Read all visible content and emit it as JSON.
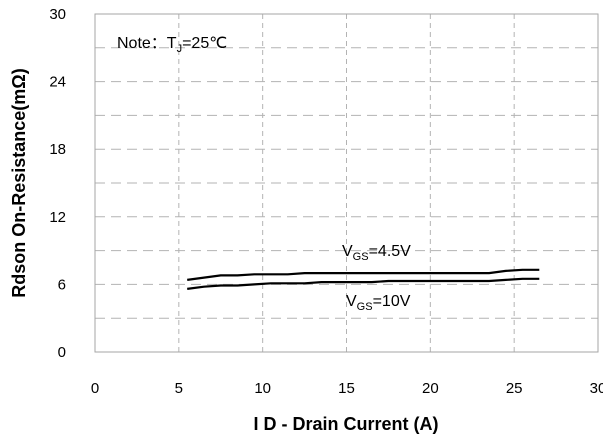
{
  "chart_data": {
    "type": "line",
    "title": "",
    "xlabel": "I D - Drain Current (A)",
    "ylabel": "Rdson On-Resistance(mΩ)",
    "xlim": [
      0,
      30
    ],
    "ylim": [
      0,
      30
    ],
    "x_ticks": [
      "0",
      "5",
      "10",
      "15",
      "20",
      "25",
      "30"
    ],
    "y_ticks": [
      "0",
      "6",
      "12",
      "18",
      "24",
      "30"
    ],
    "grid": true,
    "legend": "none",
    "series": [
      {
        "name": "VGS=4.5V",
        "color": "#000000",
        "x": [
          5.5,
          6.5,
          7.5,
          8.5,
          9.5,
          10.5,
          11.5,
          12.5,
          13.5,
          14.5,
          15.5,
          16.5,
          17.5,
          18.5,
          19.5,
          20.5,
          21.5,
          22.5,
          23.5,
          24.5,
          25.5,
          26.5
        ],
        "values": [
          6.4,
          6.6,
          6.8,
          6.8,
          6.9,
          6.9,
          6.9,
          7.0,
          7.0,
          7.0,
          7.0,
          7.0,
          7.0,
          7.0,
          7.0,
          7.0,
          7.0,
          7.0,
          7.0,
          7.2,
          7.3,
          7.3
        ]
      },
      {
        "name": "VGS=10V",
        "color": "#000000",
        "x": [
          5.5,
          6.5,
          7.5,
          8.5,
          9.5,
          10.5,
          11.5,
          12.5,
          13.5,
          14.5,
          15.5,
          16.5,
          17.5,
          18.5,
          19.5,
          20.5,
          21.5,
          22.5,
          23.5,
          24.5,
          25.5,
          26.5
        ],
        "values": [
          5.6,
          5.8,
          5.9,
          5.9,
          6.0,
          6.1,
          6.1,
          6.1,
          6.2,
          6.2,
          6.2,
          6.2,
          6.3,
          6.3,
          6.3,
          6.3,
          6.3,
          6.3,
          6.3,
          6.4,
          6.5,
          6.5
        ]
      }
    ],
    "annotations": {
      "note_prefix": "Note：T",
      "note_sub": "J",
      "note_suffix": "=25℃",
      "label_45_main": "V",
      "label_45_sub": "GS",
      "label_45_value": "=4.5V",
      "label_10_main": "V",
      "label_10_sub": "GS",
      "label_10_value": "=10V"
    }
  }
}
